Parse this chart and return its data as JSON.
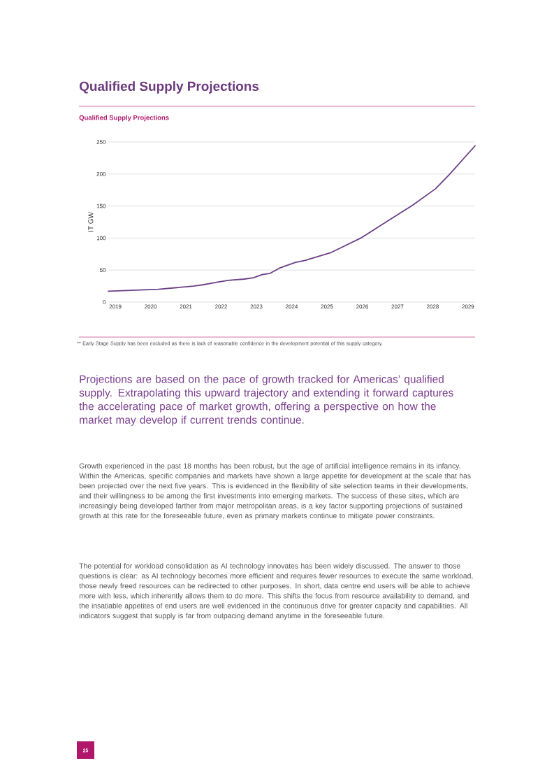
{
  "chart_data": {
    "type": "line",
    "title": "Qualified Supply Projections",
    "subtitle": "Qualified Supply Projections",
    "ylabel": "IT GW",
    "x": [
      2018.8,
      2020.22,
      2021.21,
      2021.48,
      2021.87,
      2022.2,
      2022.66,
      2022.92,
      2023.16,
      2023.39,
      2023.65,
      2024.11,
      2024.38,
      2025.1,
      2025.96,
      2026.76,
      2027.42,
      2028.08,
      2028.47,
      2029.2
    ],
    "series": [
      {
        "color": "#6b3f86",
        "values": [
          17,
          20,
          25,
          27,
          31,
          34,
          36,
          38,
          43,
          45,
          53,
          62,
          65,
          77,
          100,
          128,
          151,
          177,
          199,
          244
        ]
      }
    ],
    "xlim": [
      2018.8,
      2029.2
    ],
    "xticks": [
      2019,
      2020,
      2021,
      2022,
      2023,
      2024,
      2025,
      2026,
      2027,
      2028,
      2029
    ],
    "ylim": [
      0,
      250
    ],
    "yticks": [
      0,
      50,
      100,
      150,
      200,
      250
    ],
    "grid": "y",
    "line_style": "solid",
    "annotations": [
      "** Early Stage Supply has been excluded as there is lack of reasonable confidence in the development potential of this supply category.",
      "Projections are based on the pace of growth tracked for Americas’ qualified supply. Extrapolating this upward trajectory and extending it forward captures the accelerating pace of market growth, offering a perspective on how the market may develop if current trends continue.",
      "Growth experienced in the past 18 months has been robust, but the age of artificial intelligence remains in its infancy. Within the Americas, specific companies and markets have shown a large appetite for development at the scale that has been projected over the next five years. This is evidenced in the flexibility of site selection teams in their developments, and their willingness to be among the first investments into emerging markets. The success of these sites, which are increasingly being developed farther from major metropolitan areas, is a key factor supporting projections of sustained growth at this rate for the foreseeable future, even as primary markets continue to mitigate power constraints.",
      "The potential for workload consolidation as AI technology innovates has been widely discussed. The answer to those questions is clear: as AI technology becomes more efficient and requires fewer resources to execute the same workload, those newly freed resources can be redirected to other purposes. In short, data centre end users will be able to achieve more with less, which inherently allows them to do more. This shifts the focus from resource availability to demand, and the insatiable appetites of end users are well evidenced in the continuous drive for greater capacity and capabilities. All indicators suggest that supply is far from outpacing demand anytime in the foreseeable future.",
      "25"
    ]
  }
}
